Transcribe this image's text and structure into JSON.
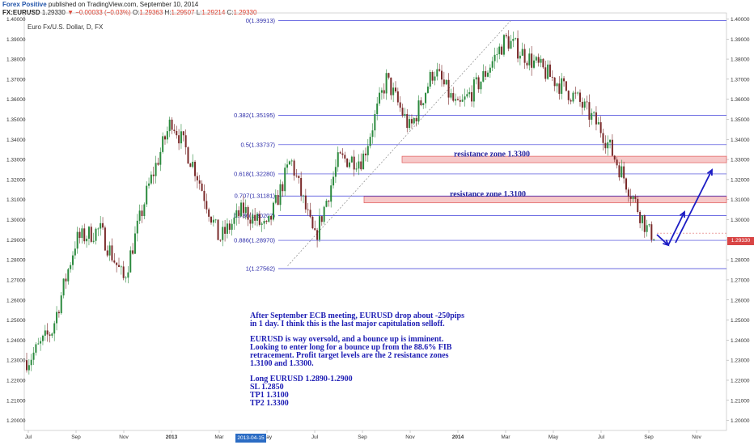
{
  "header": {
    "publisher": "Forex Positive",
    "published_text": "published on TradingView.com, September 10, 2014",
    "symbol": "FX:EURUSD",
    "last": "1.29330",
    "change": "▼ −0.00033 (−0.03%)",
    "open_label": "O:",
    "open": "1.29363",
    "high_label": "H:",
    "high": "1.29507",
    "low_label": "L:",
    "low": "1.29214",
    "close_label": "C:",
    "close": "1.29330"
  },
  "instrument_title": "Euro Fx/U.S. Dollar, D, FX",
  "price_tag": "1.29330",
  "crosshair_date": "2013-04-15",
  "note": {
    "para1": [
      "After September ECB meeting, EURUSD drop about -250pips",
      "in 1 day. I think this is the last major capitulation selloff."
    ],
    "para2": [
      "EURUSD is way oversold, and a bounce up is imminent.",
      "Looking to enter long for a bounce up from the 88.6% FIB",
      "retracement. Profit target levels are the 2 resistance zones",
      "1.3100 and 1.3300."
    ],
    "para3": [
      "Long EURUSD 1.2890-1.2900",
      "SL 1.2850",
      "TP1 1.3100",
      "TP2 1.3300"
    ]
  },
  "colors": {
    "up_candle": "#2b8a3e",
    "down_candle": "#7a2a2a",
    "fib_line": "#3a3ad8",
    "zone_fill": "#f6c9c9",
    "zone_border": "#e05a5a",
    "arrow": "#1c1cc4",
    "price_tag": "#d94545"
  },
  "chart_data": {
    "type": "candlestick",
    "symbol": "EURUSD",
    "timeframe": "D",
    "x_tick_labels": [
      "Jul",
      "Sep",
      "Nov",
      "2013",
      "Mar",
      "May",
      "Jul",
      "Sep",
      "Nov",
      "2014",
      "Mar",
      "May",
      "Jul",
      "Sep",
      "Nov"
    ],
    "y_tick_labels": [
      "1.40000",
      "1.39000",
      "1.38000",
      "1.37000",
      "1.36000",
      "1.35000",
      "1.34000",
      "1.33000",
      "1.32000",
      "1.31000",
      "1.30000",
      "1.29000",
      "1.28000",
      "1.27000",
      "1.26000",
      "1.25000",
      "1.24000",
      "1.23000",
      "1.22000",
      "1.21000",
      "1.20000"
    ],
    "ylim": [
      1.195,
      1.403
    ],
    "price_path_monthly": [
      [
        "2012-07",
        1.23
      ],
      [
        "2012-08",
        1.245
      ],
      [
        "2012-09",
        1.29
      ],
      [
        "2012-10",
        1.295
      ],
      [
        "2012-11",
        1.27
      ],
      [
        "2012-12",
        1.315
      ],
      [
        "2013-01",
        1.35
      ],
      [
        "2013-02",
        1.325
      ],
      [
        "2013-03",
        1.29
      ],
      [
        "2013-04",
        1.305
      ],
      [
        "2013-05",
        1.295
      ],
      [
        "2013-06",
        1.33
      ],
      [
        "2013-07",
        1.29
      ],
      [
        "2013-08",
        1.33
      ],
      [
        "2013-09",
        1.33
      ],
      [
        "2013-10",
        1.37
      ],
      [
        "2013-11",
        1.345
      ],
      [
        "2013-12",
        1.375
      ],
      [
        "2014-01",
        1.355
      ],
      [
        "2014-02",
        1.37
      ],
      [
        "2014-03",
        1.39
      ],
      [
        "2014-04",
        1.38
      ],
      [
        "2014-05",
        1.37
      ],
      [
        "2014-06",
        1.36
      ],
      [
        "2014-07",
        1.345
      ],
      [
        "2014-08",
        1.32
      ],
      [
        "2014-09",
        1.2933
      ]
    ],
    "fib_levels": [
      {
        "label": "0(1.39913)",
        "value": 1.39913
      },
      {
        "label": "0.382(1.35195)",
        "value": 1.35195
      },
      {
        "label": "0.5(1.33737)",
        "value": 1.33737
      },
      {
        "label": "0.618(1.32280)",
        "value": 1.3228
      },
      {
        "label": "0.707(1.31181)",
        "value": 1.31181
      },
      {
        "label": "0.786(1.30207)",
        "value": 1.30207
      },
      {
        "label": "0.886(1.28970)",
        "value": 1.2897
      },
      {
        "label": "1(1.27562)",
        "value": 1.27562
      }
    ],
    "resistance_zones": [
      {
        "label": "resistance zone 1.3300",
        "low": 1.329,
        "high": 1.331
      },
      {
        "label": "resistance zone 1.3100",
        "low": 1.309,
        "high": 1.311
      }
    ],
    "last_price": 1.2933
  }
}
